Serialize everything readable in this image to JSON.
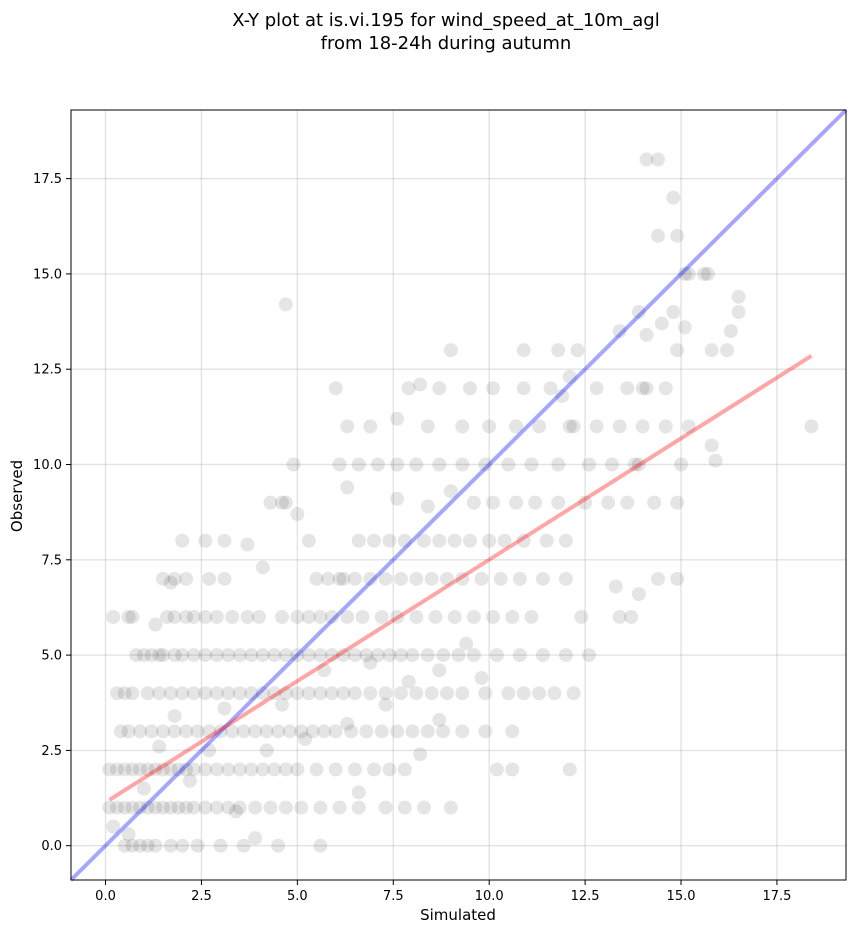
{
  "chart_data": {
    "type": "scatter",
    "title_lines": [
      "X-Y plot at is.vi.195 for wind_speed_at_10m_agl",
      "from 18-24h during autumn"
    ],
    "xlabel": "Simulated",
    "ylabel": "Observed",
    "xlim": [
      -0.9,
      19.3
    ],
    "ylim": [
      -0.9,
      19.3
    ],
    "xticks": [
      0.0,
      2.5,
      5.0,
      7.5,
      10.0,
      12.5,
      15.0,
      17.5
    ],
    "yticks": [
      0.0,
      2.5,
      5.0,
      7.5,
      10.0,
      12.5,
      15.0,
      17.5
    ],
    "xtick_labels": [
      "0.0",
      "2.5",
      "5.0",
      "7.5",
      "10.0",
      "12.5",
      "15.0",
      "17.5"
    ],
    "ytick_labels": [
      "0.0",
      "2.5",
      "5.0",
      "7.5",
      "10.0",
      "12.5",
      "15.0",
      "17.5"
    ],
    "grid": true,
    "point_color": "#000000",
    "point_alpha": 0.1,
    "identity_line": {
      "color": "#0000ff",
      "alpha": 0.35,
      "x": [
        -0.9,
        19.3
      ],
      "y": [
        -0.9,
        19.3
      ]
    },
    "regression_line": {
      "color": "#ff0000",
      "alpha": 0.35,
      "x": [
        0.1,
        18.4
      ],
      "y": [
        1.2,
        12.85
      ]
    },
    "points": [
      [
        0.2,
        6
      ],
      [
        0.6,
        6
      ],
      [
        0.7,
        6
      ],
      [
        1.3,
        5.8
      ],
      [
        1.4,
        5
      ],
      [
        1.6,
        6
      ],
      [
        1.8,
        6
      ],
      [
        2.1,
        6
      ],
      [
        2.3,
        6
      ],
      [
        2.6,
        6
      ],
      [
        2.9,
        6
      ],
      [
        3.3,
        6
      ],
      [
        3.7,
        6
      ],
      [
        4.0,
        6
      ],
      [
        4.6,
        6
      ],
      [
        5.0,
        6
      ],
      [
        5.3,
        6
      ],
      [
        5.6,
        6
      ],
      [
        5.9,
        6
      ],
      [
        6.3,
        6
      ],
      [
        6.7,
        6
      ],
      [
        7.2,
        6
      ],
      [
        7.6,
        6
      ],
      [
        8.1,
        6
      ],
      [
        8.6,
        6
      ],
      [
        9.1,
        6
      ],
      [
        9.6,
        6
      ],
      [
        10.1,
        6
      ],
      [
        10.6,
        6
      ],
      [
        11.1,
        6
      ],
      [
        12.4,
        6
      ],
      [
        13.4,
        6
      ],
      [
        13.7,
        6
      ],
      [
        0.8,
        5
      ],
      [
        1.0,
        5
      ],
      [
        1.2,
        5
      ],
      [
        1.5,
        5
      ],
      [
        1.8,
        5
      ],
      [
        2.0,
        5
      ],
      [
        2.3,
        5
      ],
      [
        2.6,
        5
      ],
      [
        2.9,
        5
      ],
      [
        3.2,
        5
      ],
      [
        3.5,
        5
      ],
      [
        3.8,
        5
      ],
      [
        4.1,
        5
      ],
      [
        4.4,
        5
      ],
      [
        4.7,
        5
      ],
      [
        5.0,
        5
      ],
      [
        5.3,
        5
      ],
      [
        5.6,
        5
      ],
      [
        5.9,
        5
      ],
      [
        6.2,
        5
      ],
      [
        6.5,
        5
      ],
      [
        6.8,
        5
      ],
      [
        7.1,
        5
      ],
      [
        7.4,
        5
      ],
      [
        7.7,
        5
      ],
      [
        8.0,
        5
      ],
      [
        8.4,
        5
      ],
      [
        8.8,
        5
      ],
      [
        9.2,
        5
      ],
      [
        9.6,
        5
      ],
      [
        10.2,
        5
      ],
      [
        10.8,
        5
      ],
      [
        11.4,
        5
      ],
      [
        12.0,
        5
      ],
      [
        12.6,
        5
      ],
      [
        0.3,
        4
      ],
      [
        0.5,
        4
      ],
      [
        0.7,
        4
      ],
      [
        1.1,
        4
      ],
      [
        1.4,
        4
      ],
      [
        1.7,
        4
      ],
      [
        2.0,
        4
      ],
      [
        2.3,
        4
      ],
      [
        2.6,
        4
      ],
      [
        2.9,
        4
      ],
      [
        3.2,
        4
      ],
      [
        3.5,
        4
      ],
      [
        3.8,
        4
      ],
      [
        4.1,
        4
      ],
      [
        4.4,
        4
      ],
      [
        4.7,
        4
      ],
      [
        5.0,
        4
      ],
      [
        5.3,
        4
      ],
      [
        5.6,
        4
      ],
      [
        5.9,
        4
      ],
      [
        6.2,
        4
      ],
      [
        6.5,
        4
      ],
      [
        6.9,
        4
      ],
      [
        7.3,
        4
      ],
      [
        7.7,
        4
      ],
      [
        8.1,
        4
      ],
      [
        8.5,
        4
      ],
      [
        8.9,
        4
      ],
      [
        9.3,
        4
      ],
      [
        9.9,
        4
      ],
      [
        10.5,
        4
      ],
      [
        10.9,
        4
      ],
      [
        11.3,
        4
      ],
      [
        11.7,
        4
      ],
      [
        12.2,
        4
      ],
      [
        0.4,
        3
      ],
      [
        0.6,
        3
      ],
      [
        0.9,
        3
      ],
      [
        1.2,
        3
      ],
      [
        1.5,
        3
      ],
      [
        1.8,
        3
      ],
      [
        2.1,
        3
      ],
      [
        2.4,
        3
      ],
      [
        2.7,
        3
      ],
      [
        3.0,
        3
      ],
      [
        3.3,
        3
      ],
      [
        3.6,
        3
      ],
      [
        3.9,
        3
      ],
      [
        4.2,
        3
      ],
      [
        4.5,
        3
      ],
      [
        4.8,
        3
      ],
      [
        5.1,
        3
      ],
      [
        5.4,
        3
      ],
      [
        5.7,
        3
      ],
      [
        6.0,
        3
      ],
      [
        6.4,
        3
      ],
      [
        6.8,
        3
      ],
      [
        7.2,
        3
      ],
      [
        7.6,
        3
      ],
      [
        8.0,
        3
      ],
      [
        8.4,
        3
      ],
      [
        8.8,
        3
      ],
      [
        9.3,
        3
      ],
      [
        9.9,
        3
      ],
      [
        10.6,
        3
      ],
      [
        0.1,
        2
      ],
      [
        0.3,
        2
      ],
      [
        0.5,
        2
      ],
      [
        0.7,
        2
      ],
      [
        0.9,
        2
      ],
      [
        1.1,
        2
      ],
      [
        1.3,
        2
      ],
      [
        1.5,
        2
      ],
      [
        1.7,
        2
      ],
      [
        1.9,
        2
      ],
      [
        2.1,
        2
      ],
      [
        2.3,
        2
      ],
      [
        2.6,
        2
      ],
      [
        2.9,
        2
      ],
      [
        3.2,
        2
      ],
      [
        3.5,
        2
      ],
      [
        3.8,
        2
      ],
      [
        4.1,
        2
      ],
      [
        4.4,
        2
      ],
      [
        4.7,
        2
      ],
      [
        5.0,
        2
      ],
      [
        5.5,
        2
      ],
      [
        6.0,
        2
      ],
      [
        6.5,
        2
      ],
      [
        7.0,
        2
      ],
      [
        7.4,
        2
      ],
      [
        7.8,
        2
      ],
      [
        10.2,
        2
      ],
      [
        10.6,
        2
      ],
      [
        12.1,
        2
      ],
      [
        0.1,
        1
      ],
      [
        0.3,
        1
      ],
      [
        0.5,
        1
      ],
      [
        0.7,
        1
      ],
      [
        0.9,
        1
      ],
      [
        1.1,
        1
      ],
      [
        1.3,
        1
      ],
      [
        1.5,
        1
      ],
      [
        1.7,
        1
      ],
      [
        1.9,
        1
      ],
      [
        2.1,
        1
      ],
      [
        2.3,
        1
      ],
      [
        2.6,
        1
      ],
      [
        2.9,
        1
      ],
      [
        3.2,
        1
      ],
      [
        3.5,
        1
      ],
      [
        3.9,
        1
      ],
      [
        4.3,
        1
      ],
      [
        4.7,
        1
      ],
      [
        5.1,
        1
      ],
      [
        5.6,
        1
      ],
      [
        6.1,
        1
      ],
      [
        6.6,
        1
      ],
      [
        7.3,
        1
      ],
      [
        7.8,
        1
      ],
      [
        8.3,
        1
      ],
      [
        9.0,
        1
      ],
      [
        0.5,
        0
      ],
      [
        0.7,
        0
      ],
      [
        0.9,
        0
      ],
      [
        1.1,
        0
      ],
      [
        1.3,
        0
      ],
      [
        1.7,
        0
      ],
      [
        2.0,
        0
      ],
      [
        2.4,
        0
      ],
      [
        3.0,
        0
      ],
      [
        3.6,
        0
      ],
      [
        4.5,
        0
      ],
      [
        5.6,
        0
      ],
      [
        0.2,
        0.5
      ],
      [
        0.6,
        0.3
      ],
      [
        1.0,
        1.5
      ],
      [
        1.4,
        2.6
      ],
      [
        1.8,
        3.4
      ],
      [
        2.2,
        1.7
      ],
      [
        2.7,
        2.5
      ],
      [
        3.1,
        3.6
      ],
      [
        3.4,
        0.9
      ],
      [
        3.9,
        0.2
      ],
      [
        4.2,
        2.5
      ],
      [
        4.6,
        3.7
      ],
      [
        5.2,
        2.8
      ],
      [
        5.7,
        4.6
      ],
      [
        6.3,
        3.2
      ],
      [
        6.6,
        1.4
      ],
      [
        6.9,
        4.8
      ],
      [
        7.3,
        3.7
      ],
      [
        7.9,
        4.3
      ],
      [
        8.2,
        2.4
      ],
      [
        8.7,
        3.3
      ],
      [
        8.7,
        4.6
      ],
      [
        9.4,
        5.3
      ],
      [
        9.8,
        4.4
      ],
      [
        1.5,
        7
      ],
      [
        1.8,
        7
      ],
      [
        2.1,
        7
      ],
      [
        2.7,
        7
      ],
      [
        3.1,
        7
      ],
      [
        1.7,
        6.9
      ],
      [
        2.0,
        8
      ],
      [
        2.6,
        8
      ],
      [
        3.1,
        8
      ],
      [
        3.7,
        7.9
      ],
      [
        4.1,
        7.3
      ],
      [
        4.3,
        9
      ],
      [
        4.7,
        9
      ],
      [
        5.3,
        8
      ],
      [
        5.5,
        7
      ],
      [
        5.8,
        7
      ],
      [
        6.2,
        7
      ],
      [
        6.6,
        8
      ],
      [
        7.0,
        8
      ],
      [
        7.4,
        8
      ],
      [
        7.8,
        8
      ],
      [
        8.3,
        8
      ],
      [
        8.7,
        8
      ],
      [
        9.1,
        8
      ],
      [
        9.5,
        8
      ],
      [
        10.0,
        8
      ],
      [
        10.4,
        8
      ],
      [
        10.9,
        8
      ],
      [
        11.5,
        8
      ],
      [
        12.0,
        8
      ],
      [
        6.1,
        7
      ],
      [
        6.5,
        7
      ],
      [
        6.9,
        7
      ],
      [
        7.3,
        7
      ],
      [
        7.7,
        7
      ],
      [
        8.1,
        7
      ],
      [
        8.5,
        7
      ],
      [
        8.9,
        7
      ],
      [
        9.3,
        7
      ],
      [
        9.8,
        7
      ],
      [
        10.3,
        7
      ],
      [
        10.8,
        7
      ],
      [
        11.4,
        7
      ],
      [
        12.0,
        7
      ],
      [
        13.3,
        6.8
      ],
      [
        13.9,
        6.6
      ],
      [
        14.4,
        7
      ],
      [
        14.9,
        7
      ],
      [
        4.6,
        9
      ],
      [
        5.0,
        8.7
      ],
      [
        6.3,
        9.4
      ],
      [
        7.6,
        9.1
      ],
      [
        8.4,
        8.9
      ],
      [
        9.0,
        9.3
      ],
      [
        9.6,
        9
      ],
      [
        10.1,
        9
      ],
      [
        10.7,
        9
      ],
      [
        11.2,
        9
      ],
      [
        11.8,
        9
      ],
      [
        12.5,
        9
      ],
      [
        13.1,
        9
      ],
      [
        13.6,
        9
      ],
      [
        14.3,
        9
      ],
      [
        14.9,
        9
      ],
      [
        4.9,
        10
      ],
      [
        6.1,
        10
      ],
      [
        6.6,
        10
      ],
      [
        7.1,
        10
      ],
      [
        7.6,
        10
      ],
      [
        8.1,
        10
      ],
      [
        8.7,
        10
      ],
      [
        9.3,
        10
      ],
      [
        9.9,
        10
      ],
      [
        10.5,
        10
      ],
      [
        11.1,
        10
      ],
      [
        11.8,
        10
      ],
      [
        12.6,
        10
      ],
      [
        13.2,
        10
      ],
      [
        13.8,
        10
      ],
      [
        15.0,
        10
      ],
      [
        15.9,
        10.1
      ],
      [
        6.3,
        11
      ],
      [
        6.9,
        11
      ],
      [
        7.6,
        11.2
      ],
      [
        8.4,
        11
      ],
      [
        9.3,
        11
      ],
      [
        10.0,
        11
      ],
      [
        10.7,
        11
      ],
      [
        11.3,
        11
      ],
      [
        12.1,
        11
      ],
      [
        12.8,
        11
      ],
      [
        13.4,
        11
      ],
      [
        14.0,
        11
      ],
      [
        14.6,
        11
      ],
      [
        15.2,
        11
      ],
      [
        18.4,
        11
      ],
      [
        7.9,
        12
      ],
      [
        8.2,
        12.1
      ],
      [
        8.7,
        12
      ],
      [
        9.5,
        12
      ],
      [
        10.1,
        12
      ],
      [
        10.9,
        12
      ],
      [
        11.6,
        12
      ],
      [
        12.1,
        12.3
      ],
      [
        12.8,
        12
      ],
      [
        13.6,
        12
      ],
      [
        14.1,
        12
      ],
      [
        14.6,
        12
      ],
      [
        6.0,
        12
      ],
      [
        4.7,
        14.2
      ],
      [
        9.0,
        13
      ],
      [
        10.9,
        13
      ],
      [
        11.8,
        13
      ],
      [
        12.3,
        13
      ],
      [
        13.4,
        13.5
      ],
      [
        14.1,
        13.4
      ],
      [
        14.9,
        13
      ],
      [
        15.8,
        13
      ],
      [
        16.3,
        13.5
      ],
      [
        16.5,
        14
      ],
      [
        14.5,
        13.7
      ],
      [
        14.8,
        14
      ],
      [
        15.1,
        15
      ],
      [
        15.7,
        15
      ],
      [
        16.5,
        14.4
      ],
      [
        14.4,
        16
      ],
      [
        14.9,
        16
      ],
      [
        14.8,
        17
      ],
      [
        14.1,
        18
      ],
      [
        14.4,
        18
      ],
      [
        13.9,
        14.0
      ],
      [
        15.1,
        13.6
      ],
      [
        14.0,
        12.0
      ],
      [
        15.2,
        15.0
      ],
      [
        15.6,
        15.0
      ],
      [
        16.2,
        13.0
      ],
      [
        15.8,
        10.5
      ],
      [
        13.9,
        10.0
      ],
      [
        12.2,
        11.0
      ],
      [
        11.9,
        11.8
      ]
    ]
  }
}
